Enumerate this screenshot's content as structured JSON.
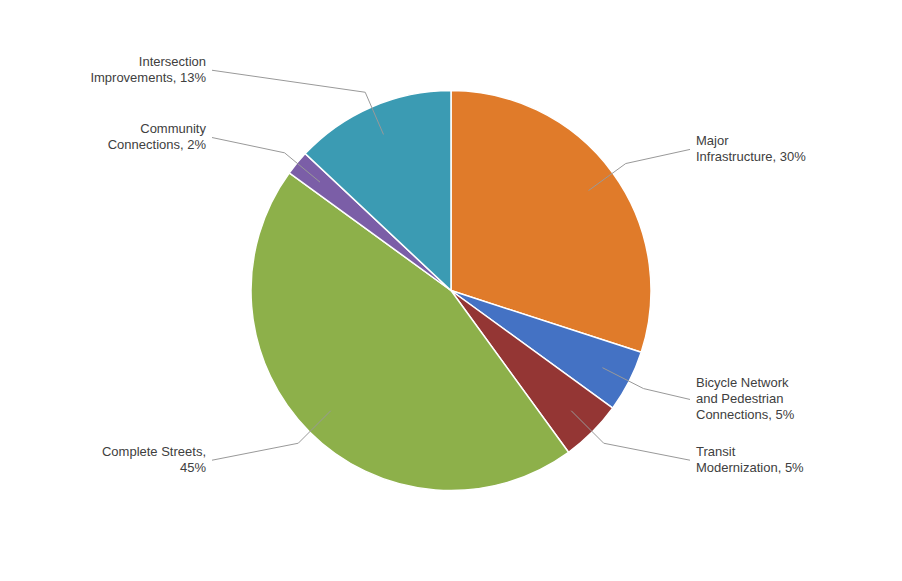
{
  "chart_data": {
    "type": "pie",
    "categories": [
      "Major\nInfrastructure, 30%",
      "Bicycle Network\nand Pedestrian\nConnections, 5%",
      "Transit\nModernization, 5%",
      "Complete Streets,\n45%",
      "Community\nConnections, 2%",
      "Intersection\nImprovements, 13%"
    ],
    "values": [
      30,
      5,
      5,
      45,
      2,
      13
    ],
    "colors": [
      "#E07B2A",
      "#4472C4",
      "#943634",
      "#8DB04A",
      "#7B5EA7",
      "#3B9BB3"
    ]
  }
}
